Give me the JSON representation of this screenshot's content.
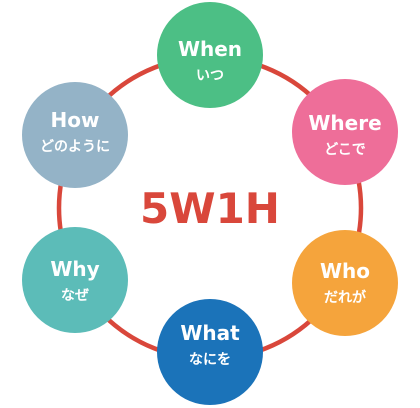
{
  "center": {
    "title": "5W1H"
  },
  "nodes": {
    "when": {
      "en": "When",
      "ja": "いつ"
    },
    "where": {
      "en": "Where",
      "ja": "どこで"
    },
    "who": {
      "en": "Who",
      "ja": "だれが"
    },
    "what": {
      "en": "What",
      "ja": "なにを"
    },
    "why": {
      "en": "Why",
      "ja": "なぜ"
    },
    "how": {
      "en": "How",
      "ja": "どのように"
    }
  },
  "colors": {
    "ring": "#d9473b",
    "title": "#d9473b",
    "when": "#4cbf85",
    "where": "#ee6e99",
    "who": "#f5a43c",
    "what": "#1b73b9",
    "why": "#5cbcb8",
    "how": "#94b3c7"
  }
}
